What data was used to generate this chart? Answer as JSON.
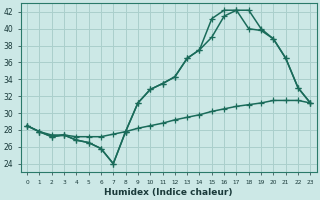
{
  "xlabel": "Humidex (Indice chaleur)",
  "background_color": "#cce8e6",
  "line_color": "#1a6b5a",
  "grid_color": "#aacfcc",
  "xlim": [
    -0.5,
    23.5
  ],
  "ylim": [
    23,
    43
  ],
  "yticks": [
    24,
    26,
    28,
    30,
    32,
    34,
    36,
    38,
    40,
    42
  ],
  "xticks": [
    0,
    1,
    2,
    3,
    4,
    5,
    6,
    7,
    8,
    9,
    10,
    11,
    12,
    13,
    14,
    15,
    16,
    17,
    18,
    19,
    20,
    21,
    22,
    23
  ],
  "series1_x": [
    0,
    1,
    2,
    3,
    4,
    5,
    6,
    7,
    8,
    9,
    10,
    11,
    12,
    13,
    14,
    15,
    16,
    17,
    18,
    19,
    20,
    21,
    22,
    23
  ],
  "series1_y": [
    28.5,
    27.8,
    27.2,
    27.4,
    26.8,
    26.5,
    25.8,
    24.0,
    27.8,
    31.2,
    32.8,
    33.5,
    34.3,
    36.5,
    37.5,
    39.0,
    41.5,
    42.2,
    42.2,
    40.0,
    38.8,
    36.5,
    33.0,
    31.2
  ],
  "series2_x": [
    0,
    1,
    2,
    3,
    4,
    5,
    6,
    7,
    8,
    9,
    10,
    11,
    12,
    13,
    14,
    15,
    16,
    17,
    18,
    19,
    20,
    21,
    22,
    23
  ],
  "series2_y": [
    28.5,
    27.8,
    27.2,
    27.4,
    26.8,
    26.5,
    25.8,
    24.0,
    27.8,
    31.2,
    32.8,
    33.5,
    34.3,
    36.5,
    37.5,
    41.2,
    42.2,
    42.2,
    40.0,
    39.8,
    38.8,
    36.5,
    33.0,
    31.2
  ],
  "series3_x": [
    0,
    1,
    2,
    3,
    4,
    5,
    6,
    7,
    8,
    9,
    10,
    11,
    12,
    13,
    14,
    15,
    16,
    17,
    18,
    19,
    20,
    21,
    22,
    23
  ],
  "series3_y": [
    28.5,
    27.8,
    27.4,
    27.4,
    27.2,
    27.2,
    27.2,
    27.5,
    27.8,
    28.2,
    28.5,
    28.8,
    29.2,
    29.5,
    29.8,
    30.2,
    30.5,
    30.8,
    31.0,
    31.2,
    31.5,
    31.5,
    31.5,
    31.2
  ],
  "linewidth": 1.1,
  "markersize": 4
}
